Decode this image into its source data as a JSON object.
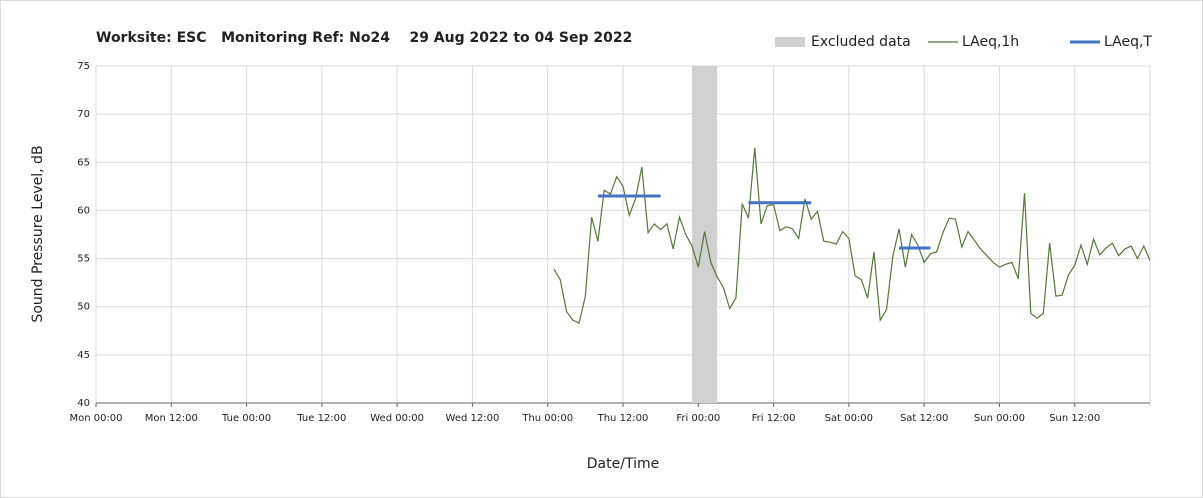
{
  "chart_data": {
    "type": "line",
    "title": "Worksite: ESC   Monitoring Ref: No24    29 Aug 2022 to 04 Sep 2022",
    "xlabel": "Date/Time",
    "ylabel": "Sound Pressure Level, dB",
    "xlim": [
      0,
      168
    ],
    "ylim": [
      40,
      75
    ],
    "yticks": [
      40,
      45,
      50,
      55,
      60,
      65,
      70,
      75
    ],
    "xticks": [
      {
        "value": 0,
        "label": "Mon 00:00"
      },
      {
        "value": 12,
        "label": "Mon 12:00"
      },
      {
        "value": 24,
        "label": "Tue 00:00"
      },
      {
        "value": 36,
        "label": "Tue 12:00"
      },
      {
        "value": 48,
        "label": "Wed 00:00"
      },
      {
        "value": 60,
        "label": "Wed 12:00"
      },
      {
        "value": 72,
        "label": "Thu 00:00"
      },
      {
        "value": 84,
        "label": "Thu 12:00"
      },
      {
        "value": 96,
        "label": "Fri 00:00"
      },
      {
        "value": 108,
        "label": "Fri 12:00"
      },
      {
        "value": 120,
        "label": "Sat 00:00"
      },
      {
        "value": 132,
        "label": "Sat 12:00"
      },
      {
        "value": 144,
        "label": "Sun 00:00"
      },
      {
        "value": 156,
        "label": "Sun 12:00"
      }
    ],
    "grid": true,
    "legend": "top-right",
    "excluded": {
      "name": "Excluded data",
      "color": "#d0d0d0",
      "x": [
        95,
        99
      ]
    },
    "series": [
      {
        "name": "LAeq,1h",
        "color": "#55773a",
        "x": [
          73,
          74,
          75,
          76,
          77,
          78,
          79,
          80,
          81,
          82,
          83,
          84,
          85,
          86,
          87,
          88,
          89,
          90,
          91,
          92,
          93,
          94,
          95,
          96,
          97,
          98,
          99,
          100,
          101,
          102,
          103,
          104,
          105,
          106,
          107,
          108,
          109,
          110,
          111,
          112,
          113,
          114,
          115,
          116,
          117,
          118,
          119,
          120,
          121,
          122,
          123,
          124,
          125,
          126,
          127,
          128,
          129,
          130,
          131,
          132,
          133,
          134,
          135,
          136,
          137,
          138,
          139,
          140,
          141,
          142,
          143,
          144,
          145,
          146,
          147,
          148,
          149,
          150,
          151,
          152,
          153,
          154,
          155,
          156,
          157,
          158,
          159,
          160,
          161,
          162,
          163,
          164,
          165,
          166,
          167,
          168
        ],
        "values": [
          53.9,
          52.8,
          49.5,
          48.6,
          48.3,
          51.1,
          59.3,
          56.8,
          62.1,
          61.7,
          63.5,
          62.5,
          59.5,
          61.2,
          64.5,
          57.7,
          58.6,
          58.0,
          58.6,
          56.0,
          59.3,
          57.5,
          56.3,
          54.1,
          57.8,
          54.6,
          53.1,
          52.0,
          49.8,
          50.9,
          60.7,
          59.2,
          66.5,
          58.6,
          60.5,
          60.6,
          57.9,
          58.3,
          58.1,
          57.1,
          61.2,
          59.1,
          59.9,
          56.8,
          56.7,
          56.5,
          57.8,
          57.1,
          53.2,
          52.8,
          50.9,
          55.7,
          48.6,
          49.7,
          55.2,
          58.1,
          54.1,
          57.5,
          56.4,
          54.6,
          55.5,
          55.7,
          57.7,
          59.2,
          59.1,
          56.2,
          57.8,
          56.9,
          56.0,
          55.3,
          54.6,
          54.1,
          54.4,
          54.6,
          52.9,
          61.8,
          49.3,
          48.8,
          49.3,
          56.6,
          51.1,
          51.2,
          53.3,
          54.3,
          56.4,
          54.4,
          57.0,
          55.4,
          56.1,
          56.6,
          55.3,
          56.0,
          56.3,
          55.0,
          56.3,
          54.8
        ]
      },
      {
        "name": "LAeq,T",
        "color": "#4472c4",
        "x": [
          80,
          90,
          97,
          104,
          114,
          121,
          128,
          133
        ],
        "values": [
          61.5,
          61.5,
          null,
          60.8,
          60.8,
          null,
          56.1,
          56.1
        ]
      }
    ]
  }
}
